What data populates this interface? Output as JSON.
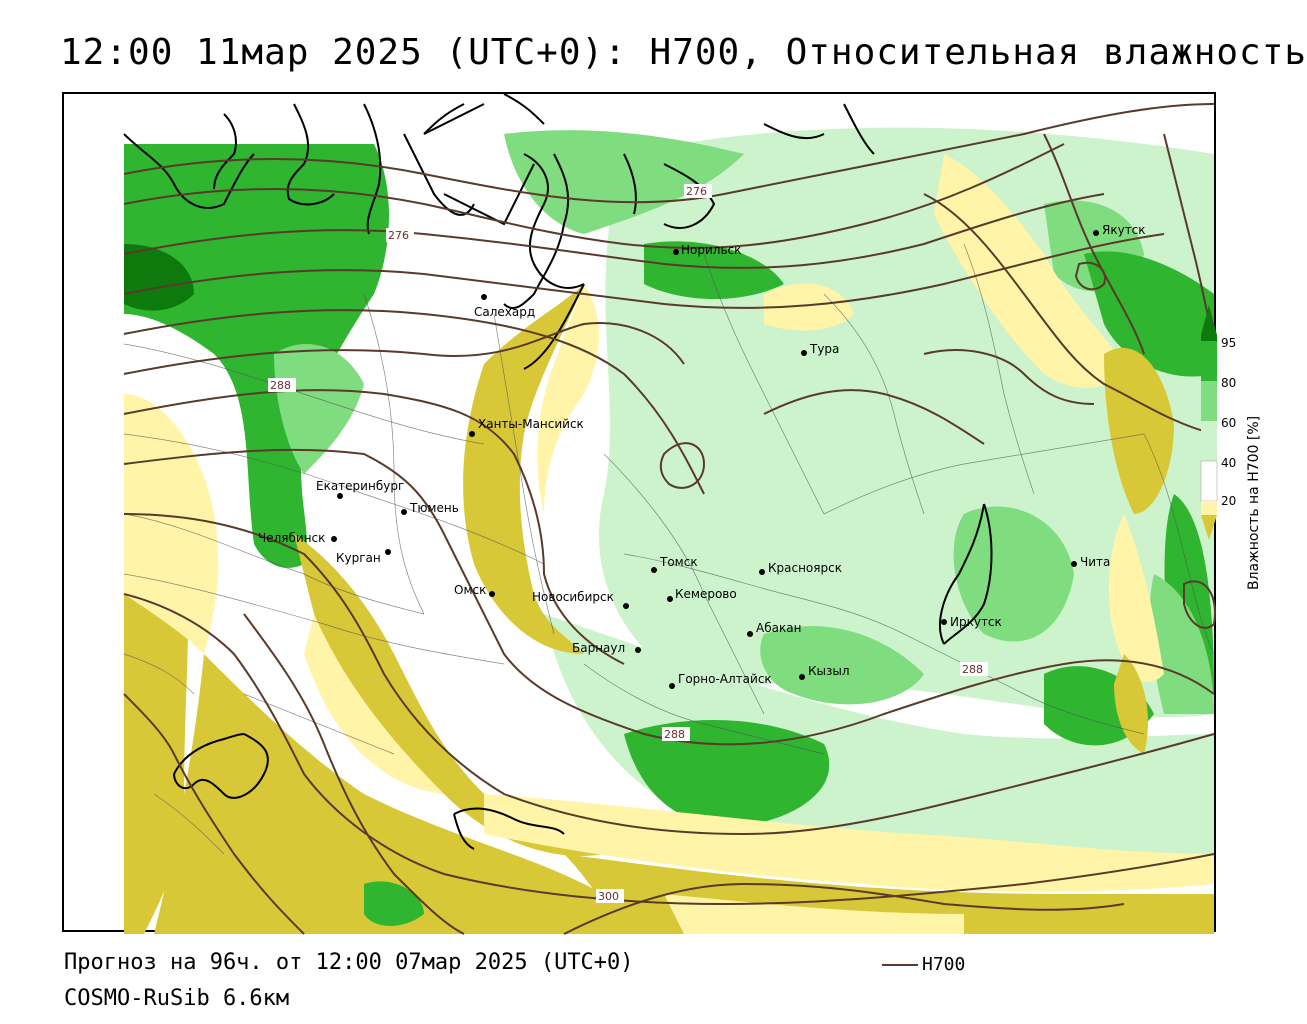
{
  "title": "12:00 11мар 2025 (UTC+0): H700, Относительная влажность",
  "legend": {
    "title": "Влажность на H700 [%]",
    "ticks": [
      "95",
      "80",
      "60",
      "40",
      "20"
    ],
    "colors": {
      "c95": "#0e7a0e",
      "c80": "#2fb52f",
      "c60": "#7fdc7f",
      "c40": "#cdf3cd",
      "c20": "#fff4a8",
      "c0": "#d8c838"
    }
  },
  "line_legend": {
    "label": "H700",
    "color": "#5a3a2a"
  },
  "footer": {
    "forecast": "Прогноз на 96ч. от 12:00 07мар 2025 (UTC+0)",
    "model": "COSMO-RuSib 6.6км"
  },
  "contour_labels": [
    "276",
    "276",
    "288",
    "288",
    "288",
    "300"
  ],
  "cities": [
    {
      "name": "Якутск",
      "id": "yakutsk"
    },
    {
      "name": "Норильск",
      "id": "norilsk"
    },
    {
      "name": "Салехард",
      "id": "salekhard"
    },
    {
      "name": "Тура",
      "id": "tura"
    },
    {
      "name": "Ханты-Мансийск",
      "id": "khanty-mansiysk"
    },
    {
      "name": "Екатеринбург",
      "id": "ekaterinburg"
    },
    {
      "name": "Тюмень",
      "id": "tyumen"
    },
    {
      "name": "Челябинск",
      "id": "chelyabinsk"
    },
    {
      "name": "Курган",
      "id": "kurgan"
    },
    {
      "name": "Омск",
      "id": "omsk"
    },
    {
      "name": "Новосибирск",
      "id": "novosibirsk"
    },
    {
      "name": "Томск",
      "id": "tomsk"
    },
    {
      "name": "Красноярск",
      "id": "krasnoyarsk"
    },
    {
      "name": "Кемерово",
      "id": "kemerovo"
    },
    {
      "name": "Барнаул",
      "id": "barnaul"
    },
    {
      "name": "Абакан",
      "id": "abakan"
    },
    {
      "name": "Горно-Алтайск",
      "id": "gorno-altaysk"
    },
    {
      "name": "Кызыл",
      "id": "kyzyl"
    },
    {
      "name": "Иркутск",
      "id": "irkutsk"
    },
    {
      "name": "Чита",
      "id": "chita"
    }
  ]
}
